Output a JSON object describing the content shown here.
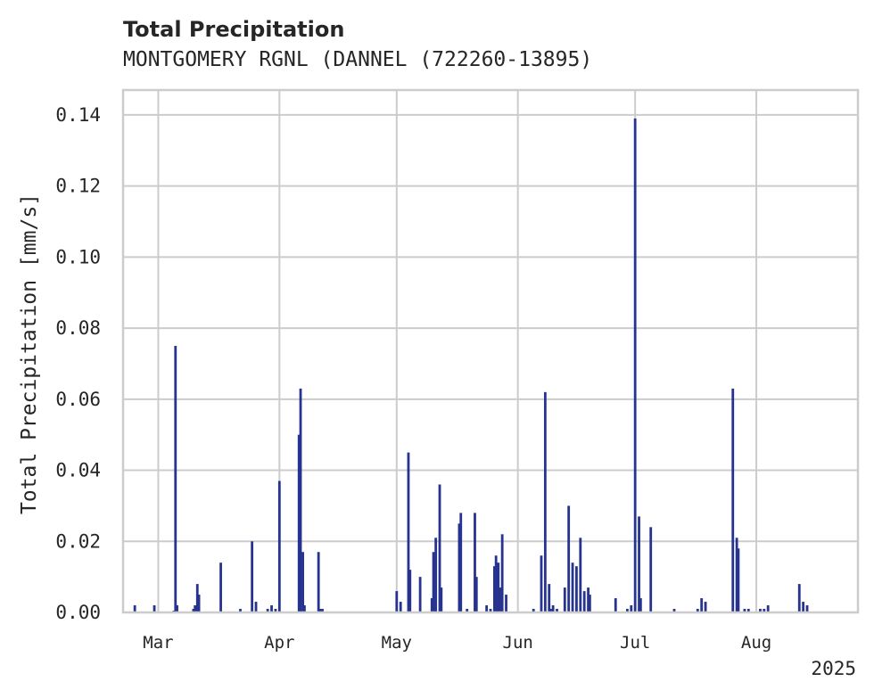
{
  "chart_data": {
    "type": "bar",
    "title": "Total Precipitation",
    "subtitle": "MONTGOMERY RGNL (DANNEL (722260-13895)",
    "ylabel": "Total Precipitation [mm/s]",
    "xlabel": "",
    "year_label": "2025",
    "ylim": [
      0,
      0.147
    ],
    "xlim": [
      "2025-02-20",
      "2025-08-27"
    ],
    "grid": true,
    "color": "#26338f",
    "yticks": [
      "0.00",
      "0.02",
      "0.04",
      "0.06",
      "0.08",
      "0.10",
      "0.12",
      "0.14"
    ],
    "xticks": [
      {
        "date": "2025-03-01",
        "label": "Mar"
      },
      {
        "date": "2025-04-01",
        "label": "Apr"
      },
      {
        "date": "2025-05-01",
        "label": "May"
      },
      {
        "date": "2025-06-01",
        "label": "Jun"
      },
      {
        "date": "2025-07-01",
        "label": "Jul"
      },
      {
        "date": "2025-08-01",
        "label": "Aug"
      }
    ],
    "points": [
      [
        "2025-02-23",
        0.002
      ],
      [
        "2025-02-28",
        0.002
      ],
      [
        "2025-03-05",
        0.0005
      ],
      [
        "2025-03-05",
        0.075
      ],
      [
        "2025-03-05",
        0.002
      ],
      [
        "2025-03-10",
        0.001
      ],
      [
        "2025-03-10",
        0.002
      ],
      [
        "2025-03-11",
        0.008
      ],
      [
        "2025-03-11",
        0.005
      ],
      [
        "2025-03-17",
        0.014
      ],
      [
        "2025-03-22",
        0.001
      ],
      [
        "2025-03-25",
        0.02
      ],
      [
        "2025-03-26",
        0.003
      ],
      [
        "2025-03-29",
        0.001
      ],
      [
        "2025-03-30",
        0.002
      ],
      [
        "2025-03-31",
        0.001
      ],
      [
        "2025-04-01",
        0.037
      ],
      [
        "2025-04-06",
        0.05
      ],
      [
        "2025-04-06",
        0.063
      ],
      [
        "2025-04-07",
        0.017
      ],
      [
        "2025-04-07",
        0.002
      ],
      [
        "2025-04-11",
        0.017
      ],
      [
        "2025-04-11",
        0.001
      ],
      [
        "2025-04-12",
        0.001
      ],
      [
        "2025-05-01",
        0.006
      ],
      [
        "2025-05-02",
        0.003
      ],
      [
        "2025-05-04",
        0.045
      ],
      [
        "2025-05-04",
        0.012
      ],
      [
        "2025-05-07",
        0.01
      ],
      [
        "2025-05-10",
        0.004
      ],
      [
        "2025-05-10",
        0.017
      ],
      [
        "2025-05-11",
        0.021
      ],
      [
        "2025-05-12",
        0.036
      ],
      [
        "2025-05-12",
        0.007
      ],
      [
        "2025-05-17",
        0.025
      ],
      [
        "2025-05-17",
        0.028
      ],
      [
        "2025-05-19",
        0.001
      ],
      [
        "2025-05-21",
        0.028
      ],
      [
        "2025-05-21",
        0.01
      ],
      [
        "2025-05-24",
        0.002
      ],
      [
        "2025-05-25",
        0.001
      ],
      [
        "2025-05-26",
        0.013
      ],
      [
        "2025-05-26",
        0.016
      ],
      [
        "2025-05-27",
        0.014
      ],
      [
        "2025-05-27",
        0.007
      ],
      [
        "2025-05-28",
        0.022
      ],
      [
        "2025-05-29",
        0.005
      ],
      [
        "2025-06-05",
        0.001
      ],
      [
        "2025-06-07",
        0.016
      ],
      [
        "2025-06-08",
        0.062
      ],
      [
        "2025-06-09",
        0.008
      ],
      [
        "2025-06-09",
        0.001
      ],
      [
        "2025-06-10",
        0.002
      ],
      [
        "2025-06-11",
        0.001
      ],
      [
        "2025-06-13",
        0.007
      ],
      [
        "2025-06-14",
        0.03
      ],
      [
        "2025-06-15",
        0.014
      ],
      [
        "2025-06-16",
        0.013
      ],
      [
        "2025-06-17",
        0.021
      ],
      [
        "2025-06-18",
        0.006
      ],
      [
        "2025-06-19",
        0.007
      ],
      [
        "2025-06-19",
        0.005
      ],
      [
        "2025-06-26",
        0.004
      ],
      [
        "2025-06-29",
        0.001
      ],
      [
        "2025-06-30",
        0.002
      ],
      [
        "2025-07-01",
        0.139
      ],
      [
        "2025-07-02",
        0.027
      ],
      [
        "2025-07-02",
        0.004
      ],
      [
        "2025-07-05",
        0.024
      ],
      [
        "2025-07-11",
        0.001
      ],
      [
        "2025-07-17",
        0.001
      ],
      [
        "2025-07-18",
        0.004
      ],
      [
        "2025-07-19",
        0.003
      ],
      [
        "2025-07-26",
        0.063
      ],
      [
        "2025-07-27",
        0.021
      ],
      [
        "2025-07-27",
        0.018
      ],
      [
        "2025-07-29",
        0.001
      ],
      [
        "2025-07-30",
        0.001
      ],
      [
        "2025-08-02",
        0.001
      ],
      [
        "2025-08-03",
        0.001
      ],
      [
        "2025-08-04",
        0.002
      ],
      [
        "2025-08-12",
        0.008
      ],
      [
        "2025-08-13",
        0.003
      ],
      [
        "2025-08-14",
        0.002
      ]
    ]
  }
}
